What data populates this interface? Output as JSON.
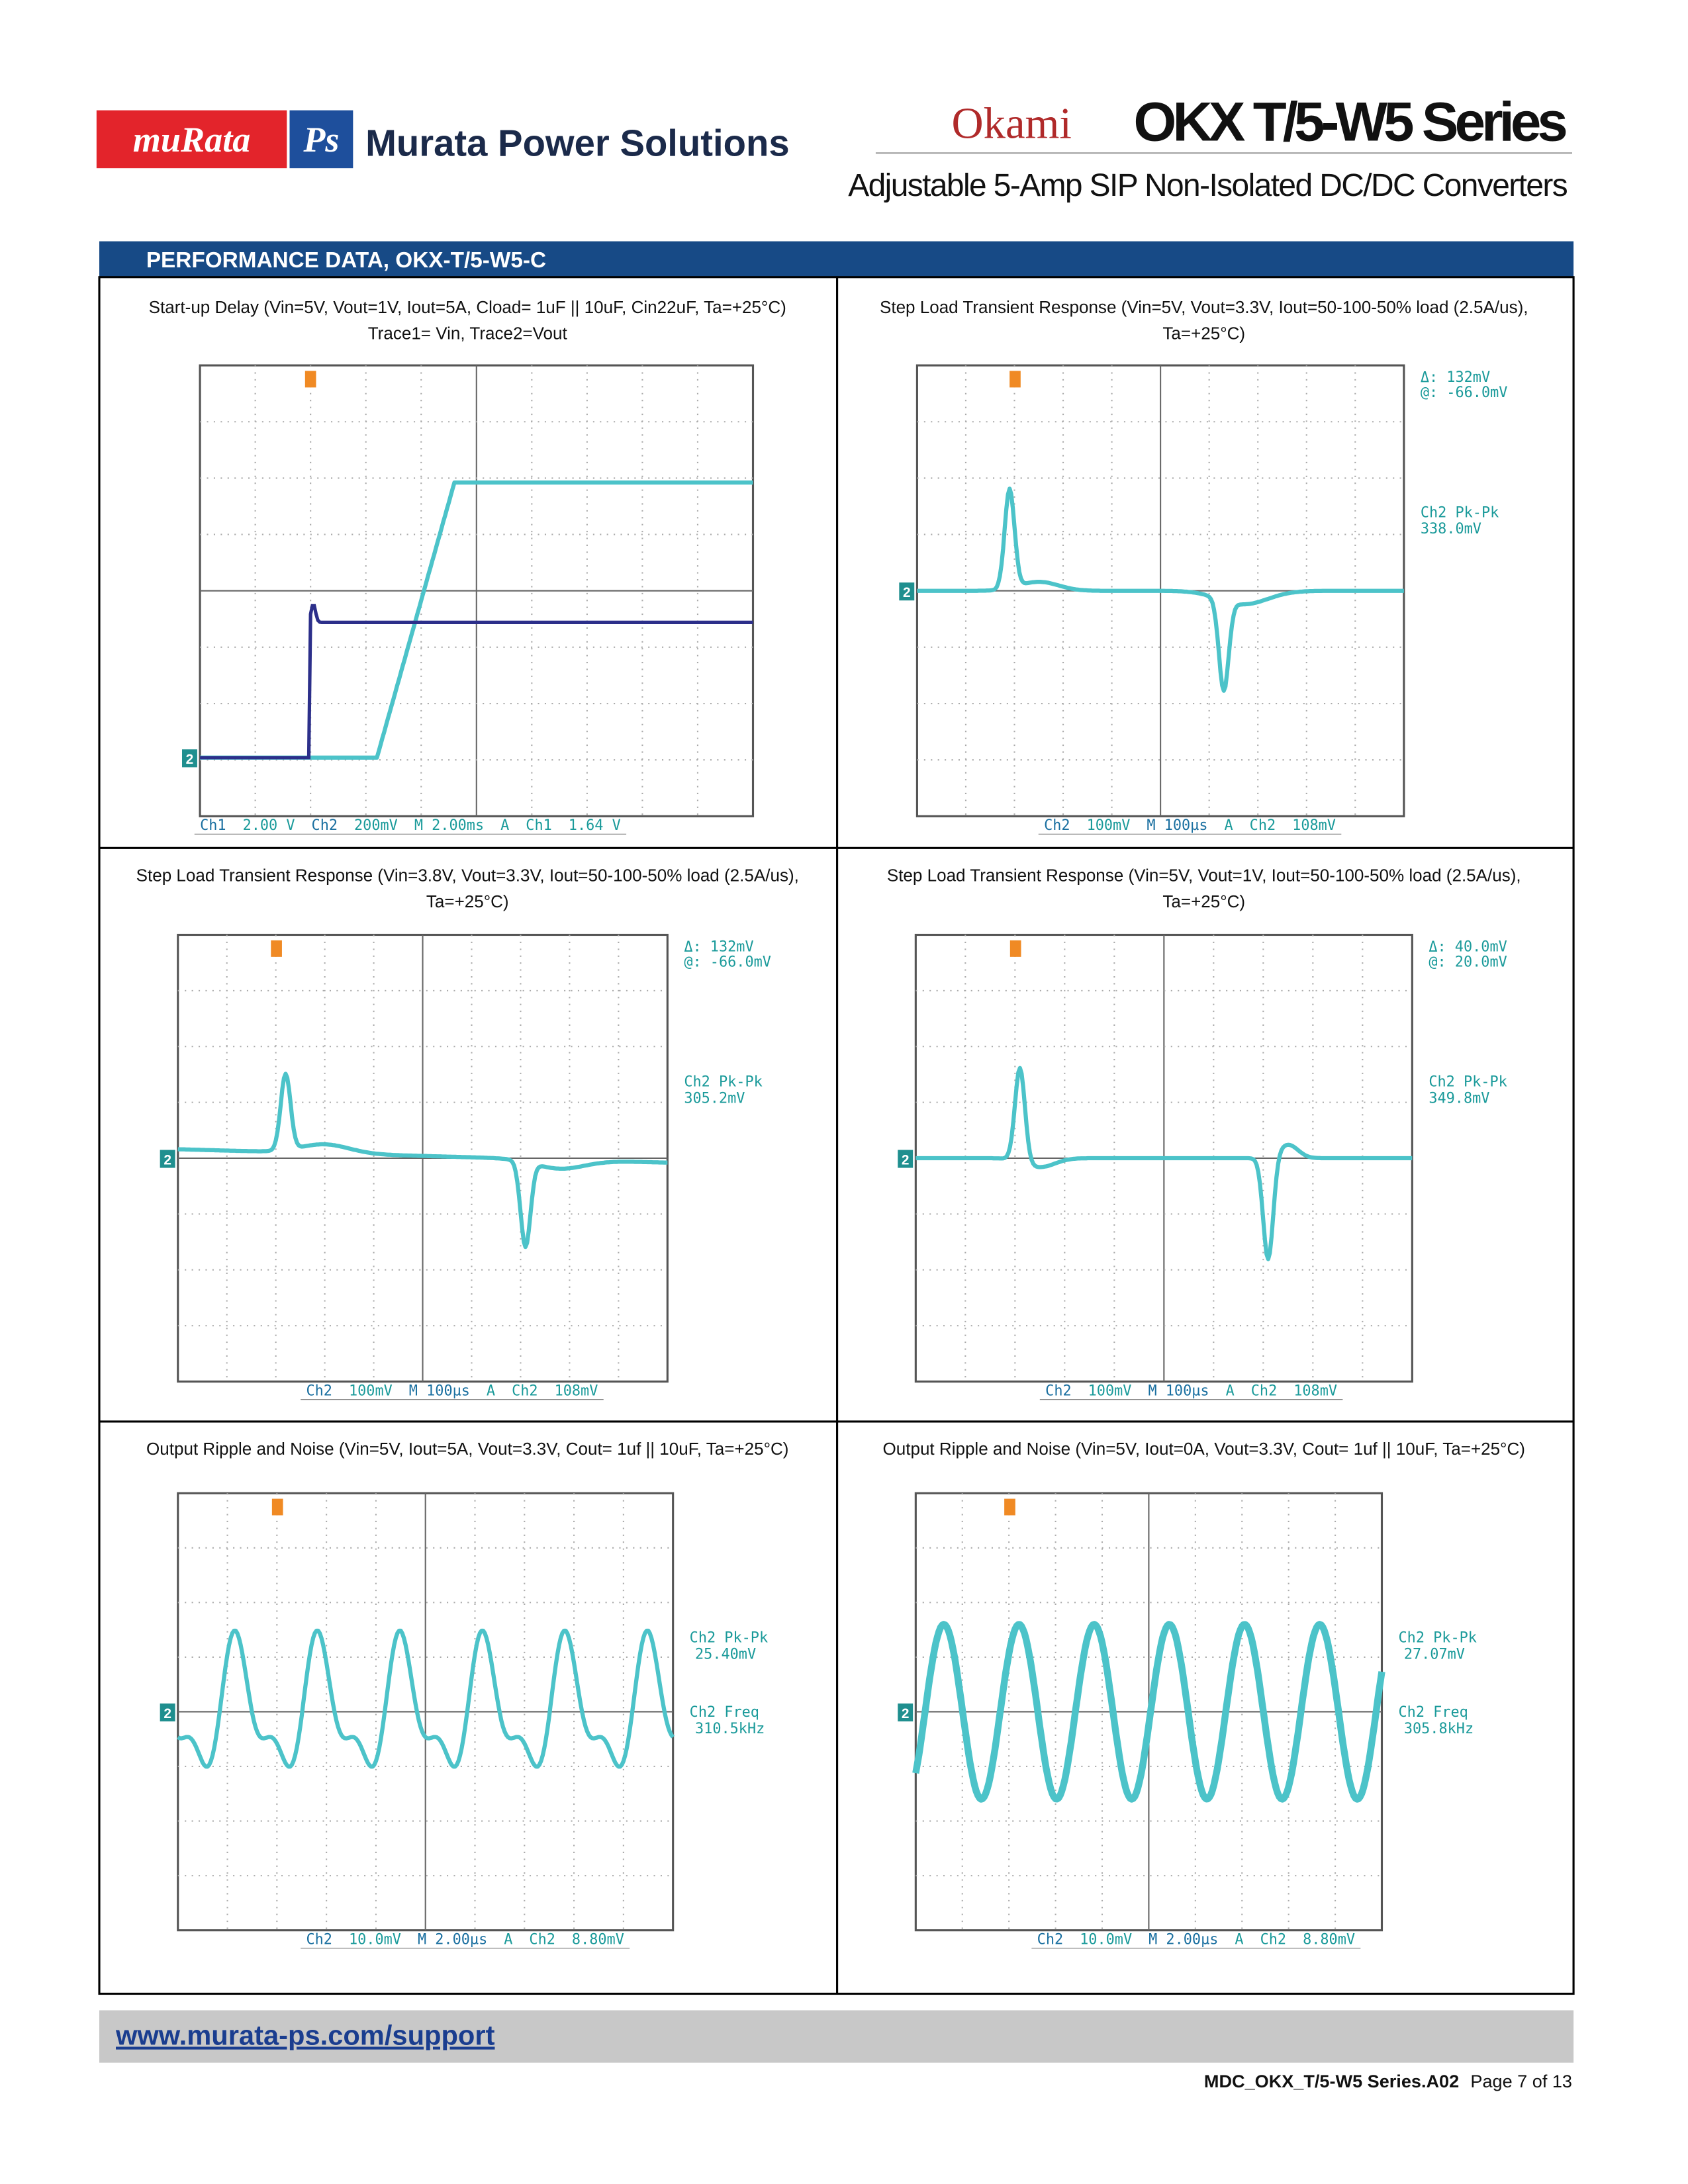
{
  "header": {
    "logo": "muRata",
    "logo_mark": "Ps",
    "company": "Murata Power Solutions",
    "brand": "Okami",
    "series": "OKX T/5-W5 Series",
    "subtitle": "Adjustable 5-Amp SIP Non-Isolated DC/DC Converters"
  },
  "section": {
    "title": "PERFORMANCE DATA, OKX-T/5-W5-C"
  },
  "panels": [
    {
      "caption": [
        "Start-up Delay (Vin=5V, Vout=1V, Iout=5A, Cload= 1uF || 10uF, Cin22uF, Ta=+25°C)",
        "Trace1= Vin, Trace2=Vout"
      ],
      "status": [
        "Ch1",
        "2.00 V",
        "Ch2",
        "200mV",
        "M 2.00ms",
        "A",
        "Ch1",
        "1.64 V"
      ],
      "notes": [],
      "marker": "2"
    },
    {
      "caption": [
        "Step Load Transient Response (Vin=5V, Vout=3.3V, Iout=50-100-50% load (2.5A/us),",
        "Ta=+25°C)"
      ],
      "status": [
        "Ch2",
        "100mV",
        "M 100µs",
        "A",
        "Ch2",
        "108mV"
      ],
      "notes": [
        "Δ:  132mV",
        "@:  -66.0mV",
        "Ch2 Pk-Pk",
        "338.0mV"
      ],
      "marker": "2"
    },
    {
      "caption": [
        "Step Load Transient Response (Vin=3.8V, Vout=3.3V, Iout=50-100-50% load (2.5A/us),",
        "Ta=+25°C)"
      ],
      "status": [
        "Ch2",
        "100mV",
        "M 100µs",
        "A",
        "Ch2",
        "108mV"
      ],
      "notes": [
        "Δ:  132mV",
        "@:  -66.0mV",
        "Ch2 Pk-Pk",
        "305.2mV"
      ],
      "marker": "2"
    },
    {
      "caption": [
        "Step Load Transient Response (Vin=5V, Vout=1V, Iout=50-100-50% load (2.5A/us),",
        "Ta=+25°C)"
      ],
      "status": [
        "Ch2",
        "100mV",
        "M 100µs",
        "A",
        "Ch2",
        "108mV"
      ],
      "notes": [
        "Δ:  40.0mV",
        "@:  20.0mV",
        "Ch2 Pk-Pk",
        "349.8mV"
      ],
      "marker": "2"
    },
    {
      "caption": [
        "Output Ripple and Noise (Vin=5V, Iout=5A, Vout=3.3V,  Cout= 1uf || 10uF, Ta=+25°C)"
      ],
      "status": [
        "Ch2",
        "10.0mV",
        "M 2.00µs",
        "A",
        "Ch2",
        "8.80mV"
      ],
      "notes": [
        "Ch2 Pk-Pk",
        "25.40mV",
        "Ch2 Freq",
        "310.5kHz"
      ],
      "marker": "2"
    },
    {
      "caption": [
        "Output Ripple and Noise (Vin=5V, Iout=0A, Vout=3.3V,  Cout= 1uf || 10uF, Ta=+25°C)"
      ],
      "status": [
        "Ch2",
        "10.0mV",
        "M 2.00µs",
        "A",
        "Ch2",
        "8.80mV"
      ],
      "notes": [
        "Ch2 Pk-Pk",
        "27.07mV",
        "Ch2 Freq",
        "305.8kHz"
      ],
      "marker": "2"
    }
  ],
  "footer": {
    "url": "www.murata-ps.com/support",
    "doc_id": "MDC_OKX_T/5-W5 Series.A02",
    "page": "Page 7 of 13"
  }
}
